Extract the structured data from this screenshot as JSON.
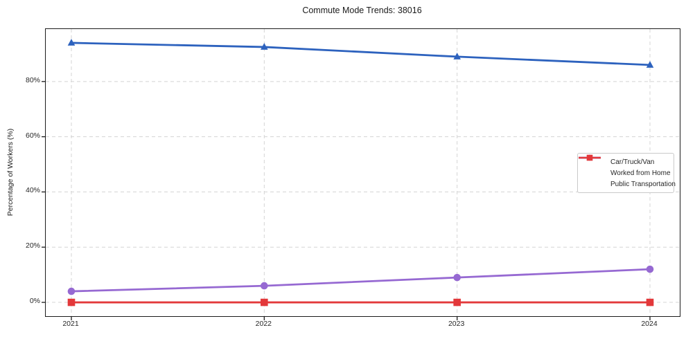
{
  "chart_data": {
    "type": "line",
    "title": "Commute Mode Trends: 38016",
    "xlabel": "",
    "ylabel": "Percentage of Workers (%)",
    "x": [
      2021,
      2022,
      2023,
      2024
    ],
    "x_tick_labels": [
      "2021",
      "2022",
      "2023",
      "2024"
    ],
    "y_ticks": [
      0,
      20,
      40,
      60,
      80
    ],
    "y_tick_labels": [
      "0%",
      "20%",
      "40%",
      "60%",
      "80%"
    ],
    "ylim": [
      -5,
      99
    ],
    "grid": true,
    "grid_style": "dashed",
    "legend_position": "center-right",
    "series": [
      {
        "name": "Car/Truck/Van",
        "color": "#2d62be",
        "marker": "triangle",
        "values": [
          94,
          92.5,
          89,
          86
        ]
      },
      {
        "name": "Worked from Home",
        "color": "#9669d2",
        "marker": "circle",
        "values": [
          4,
          6,
          9,
          12
        ]
      },
      {
        "name": "Public Transportation",
        "color": "#e3383a",
        "marker": "square",
        "values": [
          0,
          0,
          0,
          0
        ]
      }
    ],
    "colors": {
      "grid": "#d4d4d4",
      "spine": "#1a1a1a",
      "text": "#262626"
    }
  }
}
